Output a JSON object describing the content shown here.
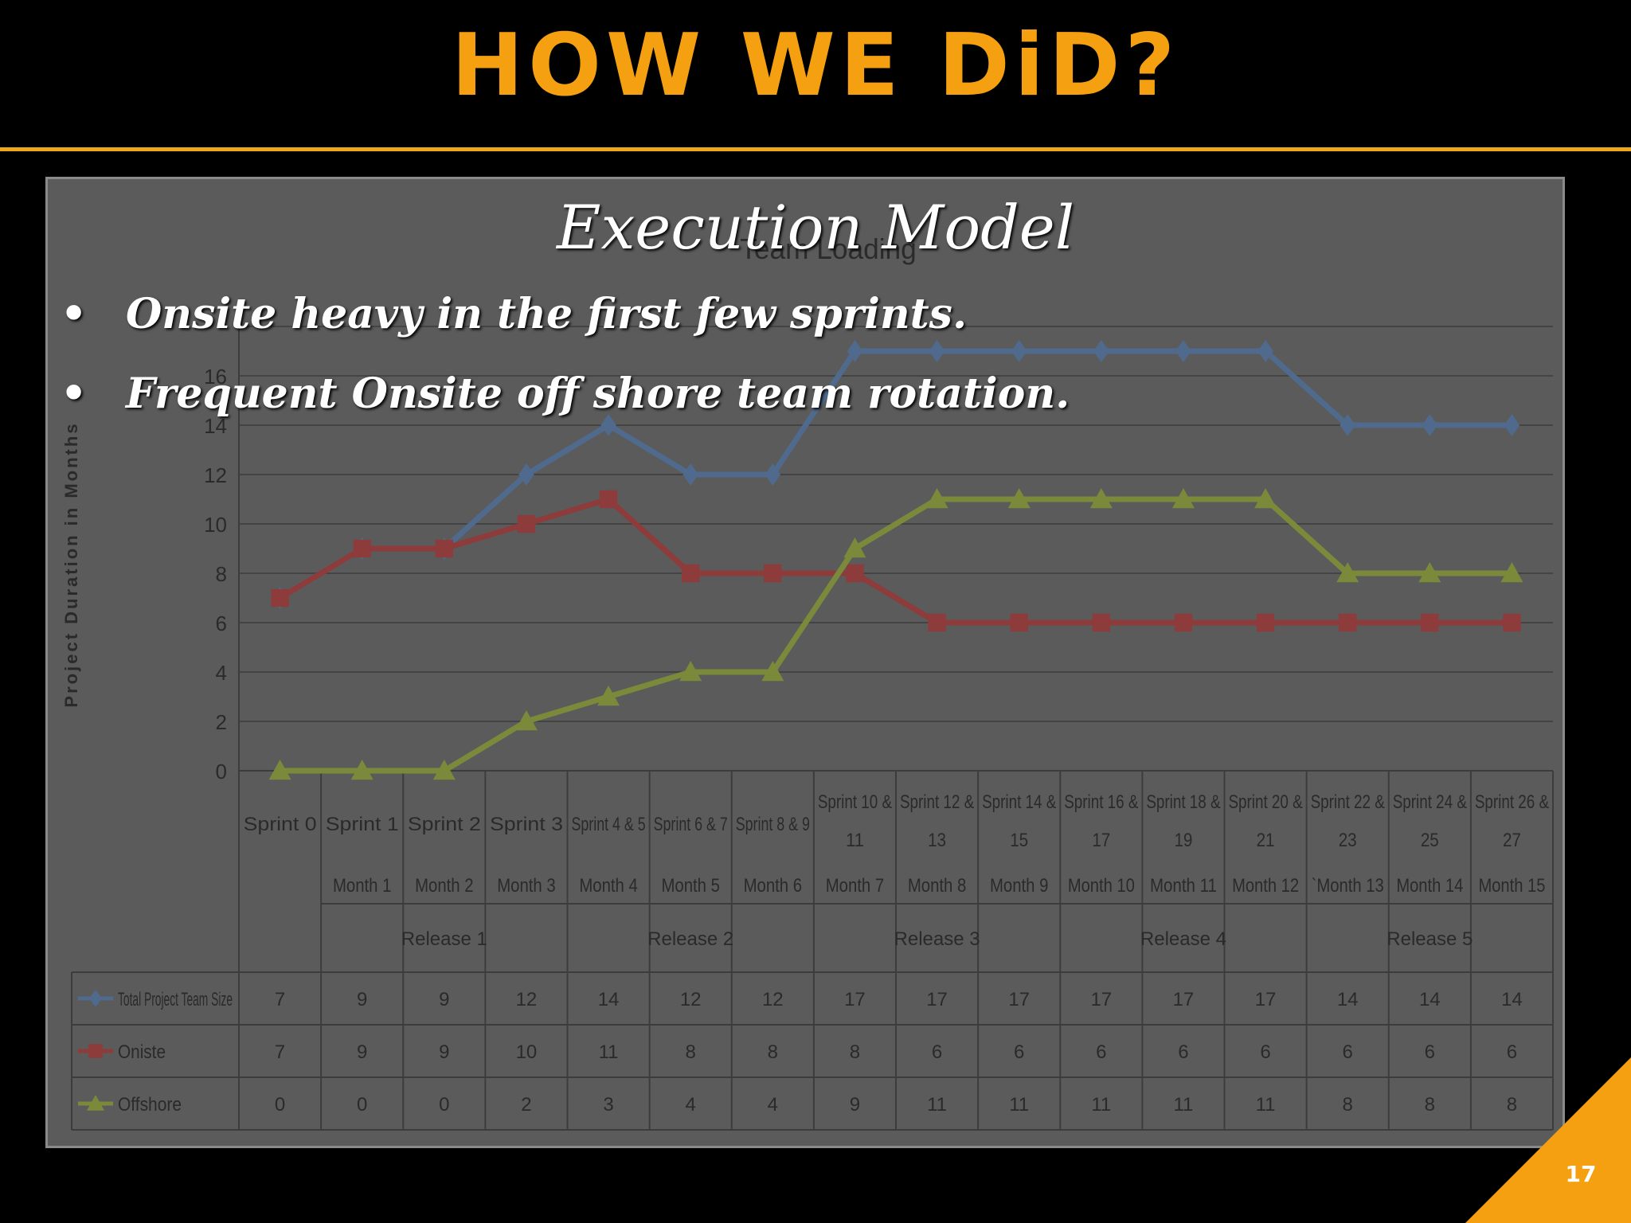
{
  "slide": {
    "title": "HOW WE DiD?",
    "overlay_title": "Execution Model",
    "bullets": [
      "Onsite heavy in the first few sprints.",
      "Frequent Onsite off shore team rotation."
    ],
    "page_number": "17",
    "accent_color": "#f5a011"
  },
  "chart_data": {
    "type": "line",
    "title": "Team Loading",
    "ylabel": "Project Duration in Months",
    "ylim": [
      0,
      18
    ],
    "yticks": [
      0,
      2,
      4,
      6,
      8,
      10,
      12,
      14,
      16
    ],
    "grid": true,
    "categories": [
      {
        "sprint": [
          "Sprint 0"
        ],
        "month": ""
      },
      {
        "sprint": [
          "Sprint 1"
        ],
        "month": "Month 1"
      },
      {
        "sprint": [
          "Sprint 2"
        ],
        "month": "Month 2"
      },
      {
        "sprint": [
          "Sprint 3"
        ],
        "month": "Month 3"
      },
      {
        "sprint": [
          "Sprint 4 & 5"
        ],
        "month": "Month 4"
      },
      {
        "sprint": [
          "Sprint 6 & 7"
        ],
        "month": "Month 5"
      },
      {
        "sprint": [
          "Sprint 8 & 9"
        ],
        "month": "Month 6"
      },
      {
        "sprint": [
          "Sprint 10 &",
          "11"
        ],
        "month": "Month 7"
      },
      {
        "sprint": [
          "Sprint 12 &",
          "13"
        ],
        "month": "Month 8"
      },
      {
        "sprint": [
          "Sprint 14 &",
          "15"
        ],
        "month": "Month 9"
      },
      {
        "sprint": [
          "Sprint 16 &",
          "17"
        ],
        "month": "Month 10"
      },
      {
        "sprint": [
          "Sprint 18 &",
          "19"
        ],
        "month": "Month 11"
      },
      {
        "sprint": [
          "Sprint 20 &",
          "21"
        ],
        "month": "Month 12"
      },
      {
        "sprint": [
          "Sprint 22 &",
          "23"
        ],
        "month": "`Month 13"
      },
      {
        "sprint": [
          "Sprint 24 &",
          "25"
        ],
        "month": "Month 14"
      },
      {
        "sprint": [
          "Sprint 26 &",
          "27"
        ],
        "month": "Month 15"
      }
    ],
    "releases": [
      {
        "label": "Release 1",
        "from": 1,
        "to": 3
      },
      {
        "label": "Release 2",
        "from": 4,
        "to": 6
      },
      {
        "label": "Release 3",
        "from": 7,
        "to": 9
      },
      {
        "label": "Release 4",
        "from": 10,
        "to": 12
      },
      {
        "label": "Release 5",
        "from": 13,
        "to": 15
      }
    ],
    "series": [
      {
        "name": "Total Project Team Size",
        "color": "#4f6a8c",
        "marker": "diamond",
        "values": [
          7,
          9,
          9,
          12,
          14,
          12,
          12,
          17,
          17,
          17,
          17,
          17,
          17,
          14,
          14,
          14
        ]
      },
      {
        "name": "Oniste",
        "color": "#8e3b3b",
        "marker": "square",
        "values": [
          7,
          9,
          9,
          10,
          11,
          8,
          8,
          8,
          6,
          6,
          6,
          6,
          6,
          6,
          6,
          6
        ]
      },
      {
        "name": "Offshore",
        "color": "#7a8a3a",
        "marker": "triangle",
        "values": [
          0,
          0,
          0,
          2,
          3,
          4,
          4,
          9,
          11,
          11,
          11,
          11,
          11,
          8,
          8,
          8
        ]
      }
    ]
  }
}
